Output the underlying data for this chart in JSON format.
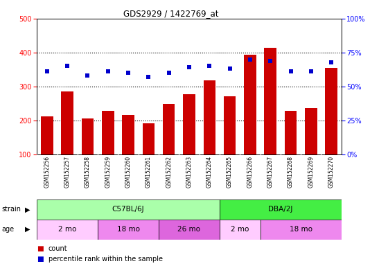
{
  "title": "GDS2929 / 1422769_at",
  "samples": [
    "GSM152256",
    "GSM152257",
    "GSM152258",
    "GSM152259",
    "GSM152260",
    "GSM152261",
    "GSM152262",
    "GSM152263",
    "GSM152264",
    "GSM152265",
    "GSM152266",
    "GSM152267",
    "GSM152268",
    "GSM152269",
    "GSM152270"
  ],
  "counts": [
    212,
    285,
    205,
    228,
    215,
    192,
    248,
    278,
    317,
    272,
    393,
    413,
    228,
    236,
    355
  ],
  "percentile_ranks": [
    61,
    65,
    58,
    61,
    60,
    57,
    60,
    64,
    65,
    63,
    70,
    69,
    61,
    61,
    68
  ],
  "ylim_left": [
    100,
    500
  ],
  "ylim_right": [
    0,
    100
  ],
  "yticks_left": [
    100,
    200,
    300,
    400,
    500
  ],
  "yticks_right": [
    0,
    25,
    50,
    75,
    100
  ],
  "bar_color": "#cc0000",
  "dot_color": "#0000cc",
  "strain_groups": [
    {
      "label": "C57BL/6J",
      "start": 0,
      "end": 9,
      "color": "#aaffaa"
    },
    {
      "label": "DBA/2J",
      "start": 9,
      "end": 15,
      "color": "#44ee44"
    }
  ],
  "age_groups": [
    {
      "label": "2 mo",
      "start": 0,
      "end": 3,
      "color": "#ffccff"
    },
    {
      "label": "18 mo",
      "start": 3,
      "end": 6,
      "color": "#ee88ee"
    },
    {
      "label": "26 mo",
      "start": 6,
      "end": 9,
      "color": "#dd66dd"
    },
    {
      "label": "2 mo",
      "start": 9,
      "end": 11,
      "color": "#ffccff"
    },
    {
      "label": "18 mo",
      "start": 11,
      "end": 15,
      "color": "#ee88ee"
    }
  ],
  "xticklabel_bg": "#d0d0d0",
  "plot_bg": "#ffffff"
}
